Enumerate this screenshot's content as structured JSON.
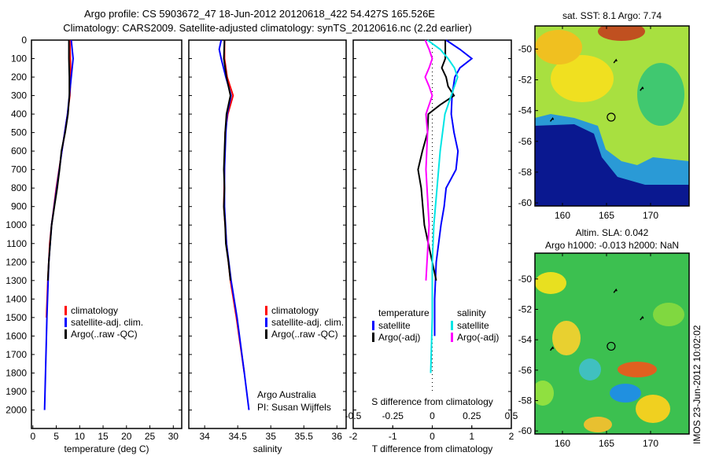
{
  "header": {
    "line1": "Argo profile: CS 5903672_47 18-Jun-2012 20120618_422 54.427S 165.526E",
    "line2": "Climatology: CARS2009. Satellite-adjusted climatology: synTS_20120616.nc (2.2d earlier)"
  },
  "side_stamp": "IMOS 23-Jun-2012 10:02:02",
  "credits": {
    "line1": "Argo Australia",
    "line2": "PI: Susan Wijffels"
  },
  "colors": {
    "clim": "#ff0000",
    "sat": "#0000ff",
    "argo": "#000000",
    "sal_sat": "#00e5e5",
    "sal_argo": "#ff00ff"
  },
  "chart_data": [
    {
      "type": "line",
      "xlabel": "temperature (deg C)",
      "ylabel": "depth",
      "xlim": [
        -0.3,
        31.8
      ],
      "ylim": [
        2100,
        0
      ],
      "xticks": [
        0,
        5,
        10,
        15,
        20,
        25,
        30
      ],
      "yticks": [
        0,
        100,
        200,
        300,
        400,
        500,
        600,
        700,
        800,
        900,
        1000,
        1100,
        1200,
        1300,
        1400,
        1500,
        1600,
        1700,
        1800,
        1900,
        2000
      ],
      "legend": [
        "climatology",
        "satellite-adj. clim.",
        "Argo(..raw -QC)"
      ],
      "series": [
        {
          "name": "climatology",
          "color": "clim",
          "depth": [
            0,
            100,
            200,
            300,
            400,
            600,
            800,
            1000,
            1100,
            1300,
            1500
          ],
          "values": [
            7.9,
            8.0,
            8.1,
            7.9,
            7.4,
            6.2,
            5.0,
            4.0,
            3.6,
            3.2,
            2.9
          ]
        },
        {
          "name": "satellite-adj. clim.",
          "color": "sat",
          "depth": [
            0,
            50,
            100,
            200,
            300,
            400,
            600,
            800,
            1000,
            1200,
            1500,
            1800,
            2000
          ],
          "values": [
            8.2,
            8.4,
            8.6,
            8.2,
            7.8,
            7.4,
            6.2,
            5.1,
            4.0,
            3.4,
            3.0,
            2.7,
            2.5
          ]
        },
        {
          "name": "Argo(..raw -QC)",
          "color": "argo",
          "depth": [
            0,
            100,
            200,
            300,
            400,
            500,
            600,
            700,
            800,
            900,
            1000,
            1100,
            1200,
            1300
          ],
          "values": [
            7.7,
            7.7,
            7.8,
            7.8,
            7.5,
            6.9,
            6.1,
            5.7,
            5.2,
            4.6,
            4.0,
            3.7,
            3.4,
            3.2
          ]
        }
      ]
    },
    {
      "type": "line",
      "xlabel": "salinity",
      "xlim": [
        33.76,
        36.14
      ],
      "ylim": [
        2100,
        0
      ],
      "xticks": [
        34,
        34.5,
        35,
        35.5,
        36
      ],
      "legend": [
        "climatology",
        "satellite-adj. clim.",
        "Argo(..raw -QC)"
      ],
      "series": [
        {
          "name": "climatology",
          "color": "clim",
          "depth": [
            0,
            100,
            200,
            300,
            400,
            500,
            700,
            900,
            1100,
            1300,
            1500,
            1800
          ],
          "values": [
            34.3,
            34.3,
            34.34,
            34.43,
            34.35,
            34.31,
            34.3,
            34.29,
            34.33,
            34.39,
            34.48,
            34.6
          ]
        },
        {
          "name": "satellite-adj. clim.",
          "color": "sat",
          "depth": [
            0,
            50,
            100,
            200,
            300,
            400,
            500,
            700,
            900,
            1100,
            1300,
            1500,
            1800,
            2000
          ],
          "values": [
            34.25,
            34.22,
            34.25,
            34.32,
            34.4,
            34.34,
            34.32,
            34.3,
            34.3,
            34.33,
            34.4,
            34.49,
            34.6,
            34.67
          ]
        },
        {
          "name": "Argo(..raw -QC)",
          "color": "argo",
          "depth": [
            0,
            100,
            200,
            300,
            400,
            500,
            600,
            700,
            800,
            900,
            1000,
            1100,
            1200,
            1300
          ],
          "values": [
            34.3,
            34.29,
            34.33,
            34.39,
            34.33,
            34.31,
            34.3,
            34.29,
            34.3,
            34.29,
            34.31,
            34.32,
            34.36,
            34.39
          ]
        }
      ]
    },
    {
      "type": "line",
      "xlabel": "T difference from climatology",
      "x2label": "S difference from climatology",
      "xlim": [
        -2,
        2
      ],
      "x2lim": [
        -0.5,
        0.5
      ],
      "ylim": [
        2100,
        0
      ],
      "xticks": [
        -2,
        -1,
        0,
        1,
        2
      ],
      "xtick_labels": [
        "-2",
        "-1",
        "0",
        "1",
        "2"
      ],
      "x2ticks": [
        -0.5,
        -0.25,
        0,
        0.25,
        0.5
      ],
      "x2tick_labels": [
        "-0.5",
        "-0.25",
        "0",
        "0.25",
        "0.5"
      ],
      "legend_titles": [
        "temperature",
        "salinity"
      ],
      "legend": [
        "satellite",
        "Argo(-adj)",
        "satellite",
        "Argo(-adj)"
      ],
      "series": [
        {
          "name": "T satellite",
          "axis": "T",
          "color": "sat",
          "depth": [
            0,
            50,
            100,
            150,
            200,
            300,
            400,
            500,
            600,
            700,
            800,
            900,
            1000,
            1200,
            1400,
            1600
          ],
          "values": [
            0.35,
            0.7,
            1.0,
            0.7,
            0.57,
            0.5,
            0.48,
            0.55,
            0.65,
            0.6,
            0.35,
            0.3,
            0.22,
            0.1,
            0.06,
            0.06
          ]
        },
        {
          "name": "T Argo(-adj)",
          "axis": "T",
          "color": "argo",
          "depth": [
            0,
            100,
            150,
            200,
            250,
            300,
            350,
            400,
            500,
            600,
            700,
            800,
            900,
            1000,
            1100,
            1200,
            1300
          ],
          "values": [
            0.33,
            0.33,
            0.24,
            0.35,
            0.4,
            0.55,
            0.2,
            -0.1,
            -0.12,
            -0.25,
            -0.36,
            -0.28,
            -0.24,
            -0.2,
            -0.1,
            0.0,
            0.1
          ]
        },
        {
          "name": "S satellite",
          "axis": "S",
          "color": "sal_sat",
          "depth": [
            0,
            50,
            100,
            150,
            200,
            300,
            400,
            600,
            800,
            1000,
            1200,
            1500,
            1800
          ],
          "values": [
            -0.03,
            0.05,
            0.1,
            0.14,
            0.16,
            0.12,
            0.08,
            0.05,
            0.03,
            0.01,
            0.0,
            0.0,
            -0.01
          ]
        },
        {
          "name": "S Argo(-adj)",
          "axis": "S",
          "color": "sal_argo",
          "depth": [
            0,
            50,
            100,
            150,
            200,
            250,
            300,
            400,
            500,
            700,
            1000,
            1300
          ],
          "values": [
            -0.045,
            -0.02,
            0.0,
            -0.02,
            -0.045,
            -0.02,
            0.0,
            -0.04,
            -0.03,
            -0.04,
            -0.02,
            -0.04
          ]
        }
      ]
    }
  ],
  "maps": [
    {
      "title": "sat. SST: 8.1 Argo: 7.74",
      "lon_ticks": [
        160,
        165,
        170
      ],
      "lat_ticks": [
        -50,
        -52,
        -54,
        -56,
        -58,
        -60
      ]
    },
    {
      "title_line1": "Altim. SLA: 0.042",
      "title_line2": "Argo h1000: -0.013 h2000: NaN",
      "lon_ticks": [
        160,
        165,
        170
      ],
      "lat_ticks": [
        -50,
        -52,
        -54,
        -56,
        -58,
        -60
      ]
    }
  ],
  "float_position": {
    "lon": 165.526,
    "lat": -54.427
  }
}
